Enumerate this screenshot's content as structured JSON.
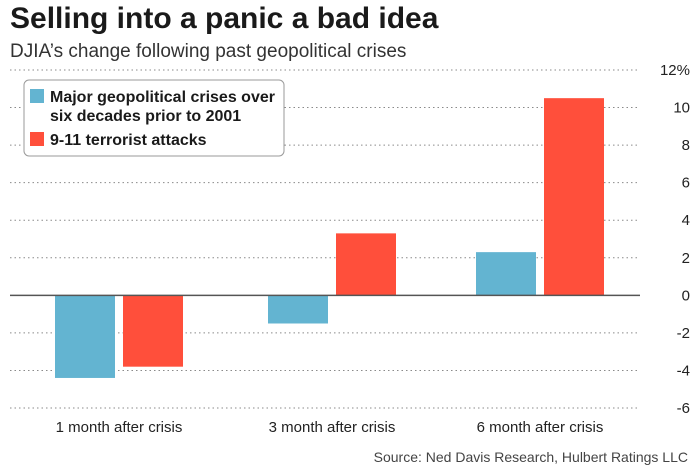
{
  "header": {
    "title": "Selling into a panic a bad idea",
    "subtitle": "DJIA’s change following past geopolitical crises"
  },
  "footer": {
    "source": "Source: Ned Davis Research, Hulbert Ratings LLC"
  },
  "chart_data": {
    "type": "bar",
    "categories": [
      "1 month after crisis",
      "3 month after crisis",
      "6 month after crisis"
    ],
    "series": [
      {
        "name": "Major geopolitical crises over six decades prior to 2001",
        "legend_lines": [
          "Major geopolitical crises over",
          "six decades prior to 2001"
        ],
        "color": "#63b4d1",
        "values": [
          -4.4,
          -1.5,
          2.3
        ]
      },
      {
        "name": "9-11 terrorist attacks",
        "legend_lines": [
          "9-11 terrorist attacks"
        ],
        "color": "#ff4f3b",
        "values": [
          -3.8,
          3.3,
          10.5
        ]
      }
    ],
    "ylim": [
      -6,
      12
    ],
    "yticks": [
      -6,
      -4,
      -2,
      0,
      2,
      4,
      6,
      8,
      10,
      12
    ],
    "ytick_labels": [
      "-6",
      "-4",
      "-2",
      "0",
      "2",
      "4",
      "6",
      "8",
      "10",
      "12%"
    ],
    "grid": true,
    "y_axis_side": "right",
    "legend_position": "top-left"
  }
}
